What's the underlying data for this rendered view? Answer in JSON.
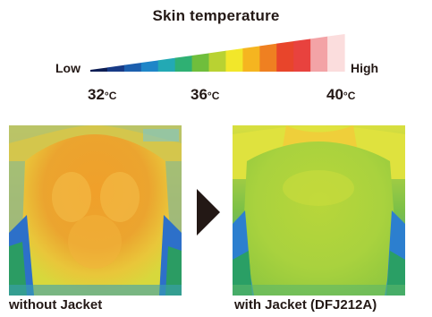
{
  "header": {
    "title": "Skin temperature"
  },
  "scale": {
    "low_label": "Low",
    "high_label": "High",
    "ticks": [
      {
        "value": "32",
        "unit": "°C"
      },
      {
        "value": "36",
        "unit": "°C"
      },
      {
        "value": "40",
        "unit": "°C"
      }
    ],
    "colors": [
      "#0d1e55",
      "#173a86",
      "#1c5fae",
      "#1f86c8",
      "#23a9b4",
      "#2fb073",
      "#6fbe3c",
      "#b9d232",
      "#f2e72a",
      "#f5b520",
      "#ef8021",
      "#e8452b",
      "#e8423e",
      "#f3a3a6",
      "#fbdddd"
    ]
  },
  "images": {
    "before_caption": "without Jacket",
    "after_caption": "with Jacket (DFJ212A)"
  }
}
